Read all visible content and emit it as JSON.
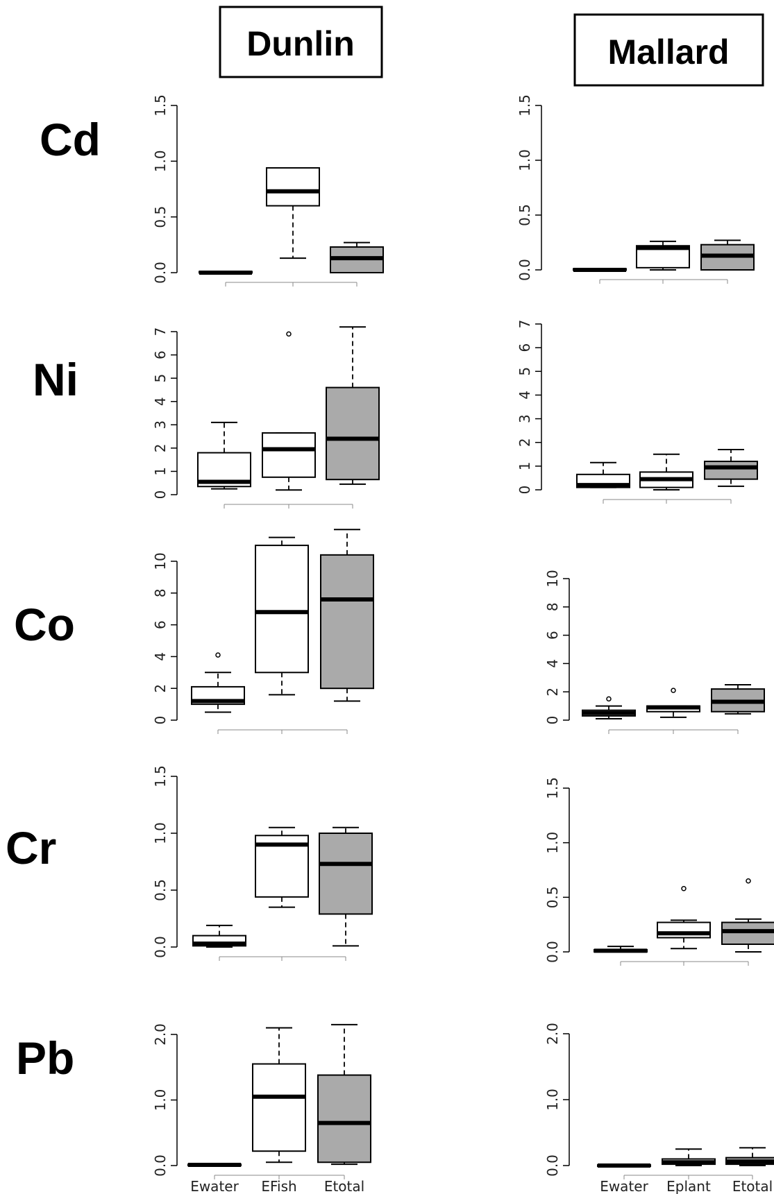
{
  "columns": [
    "Dunlin",
    "Mallard"
  ],
  "rows": [
    "Cd",
    "Ni",
    "Co",
    "Cr",
    "Pb"
  ],
  "colors": {
    "filled": "#aaaaaa",
    "open": "#ffffff",
    "stroke": "#000000"
  },
  "chart_data": [
    {
      "type": "boxplot",
      "species": "Dunlin",
      "metal": "Cd",
      "ylim": [
        0,
        1.5
      ],
      "yticks": [
        0,
        0.5,
        1.0,
        1.5
      ],
      "tick_labels": [
        "0.0",
        "0.5",
        "1.0",
        "1.5"
      ],
      "categories": [
        "Ewater",
        "EFish",
        "Etotal"
      ],
      "show_categories": false,
      "boxes": [
        {
          "min": 0.0,
          "q1": 0.0,
          "median": 0.0,
          "q3": 0.01,
          "max": 0.01,
          "fill": "open"
        },
        {
          "min": 0.13,
          "q1": 0.6,
          "median": 0.73,
          "q3": 0.94,
          "max": 0.94,
          "fill": "open"
        },
        {
          "min": 0.0,
          "q1": 0.0,
          "median": 0.13,
          "q3": 0.23,
          "max": 0.27,
          "fill": "filled"
        }
      ]
    },
    {
      "type": "boxplot",
      "species": "Mallard",
      "metal": "Cd",
      "ylim": [
        0,
        1.5
      ],
      "yticks": [
        0,
        0.5,
        1.0,
        1.5
      ],
      "tick_labels": [
        "0.0",
        "0.5",
        "1.0",
        "1.5"
      ],
      "categories": [
        "Ewater",
        "Eplant",
        "Etotal"
      ],
      "show_categories": false,
      "boxes": [
        {
          "min": 0.0,
          "q1": 0.0,
          "median": 0.0,
          "q3": 0.01,
          "max": 0.01,
          "fill": "open"
        },
        {
          "min": 0.0,
          "q1": 0.02,
          "median": 0.2,
          "q3": 0.22,
          "max": 0.26,
          "fill": "open"
        },
        {
          "min": 0.0,
          "q1": 0.0,
          "median": 0.13,
          "q3": 0.23,
          "max": 0.27,
          "fill": "filled"
        }
      ]
    },
    {
      "type": "boxplot",
      "species": "Dunlin",
      "metal": "Ni",
      "ylim": [
        0,
        7
      ],
      "yticks": [
        0,
        1,
        2,
        3,
        4,
        5,
        6,
        7
      ],
      "tick_labels": [
        "0",
        "1",
        "2",
        "3",
        "4",
        "5",
        "6",
        "7"
      ],
      "categories": [
        "Ewater",
        "EFish",
        "Etotal"
      ],
      "show_categories": false,
      "boxes": [
        {
          "min": 0.25,
          "q1": 0.35,
          "median": 0.55,
          "q3": 1.8,
          "max": 3.1,
          "fill": "open"
        },
        {
          "min": 0.2,
          "q1": 0.75,
          "median": 1.95,
          "q3": 2.65,
          "max": 2.65,
          "outliers": [
            6.9
          ],
          "fill": "open"
        },
        {
          "min": 0.45,
          "q1": 0.65,
          "median": 2.4,
          "q3": 4.6,
          "max": 7.2,
          "fill": "filled"
        }
      ]
    },
    {
      "type": "boxplot",
      "species": "Mallard",
      "metal": "Ni",
      "ylim": [
        0,
        7
      ],
      "yticks": [
        0,
        1,
        2,
        3,
        4,
        5,
        6,
        7
      ],
      "tick_labels": [
        "0",
        "1",
        "2",
        "3",
        "4",
        "5",
        "6",
        "7"
      ],
      "categories": [
        "Ewater",
        "Eplant",
        "Etotal"
      ],
      "show_categories": false,
      "boxes": [
        {
          "min": 0.1,
          "q1": 0.1,
          "median": 0.2,
          "q3": 0.65,
          "max": 1.15,
          "fill": "open"
        },
        {
          "min": 0.0,
          "q1": 0.1,
          "median": 0.45,
          "q3": 0.75,
          "max": 1.5,
          "fill": "open"
        },
        {
          "min": 0.15,
          "q1": 0.45,
          "median": 0.95,
          "q3": 1.2,
          "max": 1.7,
          "fill": "filled"
        }
      ]
    },
    {
      "type": "boxplot",
      "species": "Dunlin",
      "metal": "Co",
      "ylim": [
        0,
        12
      ],
      "yticks": [
        0,
        2,
        4,
        6,
        8,
        10
      ],
      "tick_labels": [
        "0",
        "2",
        "4",
        "6",
        "8",
        "10"
      ],
      "categories": [
        "Ewater",
        "EFish",
        "Etotal"
      ],
      "show_categories": false,
      "boxes": [
        {
          "min": 0.5,
          "q1": 1.0,
          "median": 1.2,
          "q3": 2.1,
          "max": 3.0,
          "outliers": [
            4.1
          ],
          "fill": "open"
        },
        {
          "min": 1.6,
          "q1": 3.0,
          "median": 6.8,
          "q3": 11.0,
          "max": 11.5,
          "fill": "open"
        },
        {
          "min": 1.2,
          "q1": 2.0,
          "median": 7.6,
          "q3": 10.4,
          "max": 12.0,
          "fill": "filled"
        }
      ]
    },
    {
      "type": "boxplot",
      "species": "Mallard",
      "metal": "Co",
      "ylim": [
        0,
        12
      ],
      "yticks": [
        0,
        2,
        4,
        6,
        8,
        10
      ],
      "tick_labels": [
        "0",
        "2",
        "4",
        "6",
        "8",
        "10"
      ],
      "categories": [
        "Ewater",
        "Eplant",
        "Etotal"
      ],
      "show_categories": false,
      "boxes": [
        {
          "min": 0.1,
          "q1": 0.3,
          "median": 0.5,
          "q3": 0.7,
          "max": 1.0,
          "outliers": [
            1.5
          ],
          "fill": "open"
        },
        {
          "min": 0.2,
          "q1": 0.6,
          "median": 0.9,
          "q3": 1.0,
          "max": 1.0,
          "outliers": [
            2.1
          ],
          "fill": "open"
        },
        {
          "min": 0.45,
          "q1": 0.6,
          "median": 1.3,
          "q3": 2.2,
          "max": 2.5,
          "fill": "filled"
        }
      ]
    },
    {
      "type": "boxplot",
      "species": "Dunlin",
      "metal": "Cr",
      "ylim": [
        0,
        1.5
      ],
      "yticks": [
        0,
        0.5,
        1.0,
        1.5
      ],
      "tick_labels": [
        "0.0",
        "0.5",
        "1.0",
        "1.5"
      ],
      "categories": [
        "Ewater",
        "EFish",
        "Etotal"
      ],
      "show_categories": false,
      "boxes": [
        {
          "min": 0.0,
          "q1": 0.01,
          "median": 0.03,
          "q3": 0.1,
          "max": 0.19,
          "fill": "open"
        },
        {
          "min": 0.35,
          "q1": 0.44,
          "median": 0.9,
          "q3": 0.98,
          "max": 1.05,
          "fill": "open"
        },
        {
          "min": 0.01,
          "q1": 0.29,
          "median": 0.73,
          "q3": 1.0,
          "max": 1.05,
          "fill": "filled"
        }
      ]
    },
    {
      "type": "boxplot",
      "species": "Mallard",
      "metal": "Cr",
      "ylim": [
        0,
        1.5
      ],
      "yticks": [
        0,
        0.5,
        1.0,
        1.5
      ],
      "tick_labels": [
        "0.0",
        "0.5",
        "1.0",
        "1.5"
      ],
      "categories": [
        "Ewater",
        "Eplant",
        "Etotal"
      ],
      "show_categories": false,
      "boxes": [
        {
          "min": 0.0,
          "q1": 0.0,
          "median": 0.01,
          "q3": 0.02,
          "max": 0.05,
          "fill": "open"
        },
        {
          "min": 0.03,
          "q1": 0.13,
          "median": 0.17,
          "q3": 0.27,
          "max": 0.29,
          "outliers": [
            0.58
          ],
          "fill": "open"
        },
        {
          "min": 0.0,
          "q1": 0.07,
          "median": 0.19,
          "q3": 0.27,
          "max": 0.3,
          "outliers": [
            0.65
          ],
          "fill": "filled"
        }
      ]
    },
    {
      "type": "boxplot",
      "species": "Dunlin",
      "metal": "Pb",
      "ylim": [
        0,
        2.5
      ],
      "yticks": [
        0,
        1.0,
        2.0
      ],
      "tick_labels": [
        "0.0",
        "1.0",
        "2.0"
      ],
      "categories": [
        "Ewater",
        "EFish",
        "Etotal"
      ],
      "show_categories": true,
      "boxes": [
        {
          "min": 0.0,
          "q1": 0.0,
          "median": 0.01,
          "q3": 0.02,
          "max": 0.02,
          "fill": "open"
        },
        {
          "min": 0.05,
          "q1": 0.22,
          "median": 1.05,
          "q3": 1.55,
          "max": 2.1,
          "fill": "open"
        },
        {
          "min": 0.02,
          "q1": 0.05,
          "median": 0.65,
          "q3": 1.38,
          "max": 2.15,
          "fill": "filled"
        }
      ]
    },
    {
      "type": "boxplot",
      "species": "Mallard",
      "metal": "Pb",
      "ylim": [
        0,
        2.5
      ],
      "yticks": [
        0,
        1.0,
        2.0
      ],
      "tick_labels": [
        "0.0",
        "1.0",
        "2.0"
      ],
      "categories": [
        "Ewater",
        "Eplant",
        "Etotal"
      ],
      "show_categories": true,
      "boxes": [
        {
          "min": 0.0,
          "q1": 0.0,
          "median": 0.0,
          "q3": 0.01,
          "max": 0.01,
          "fill": "open"
        },
        {
          "min": 0.0,
          "q1": 0.02,
          "median": 0.05,
          "q3": 0.1,
          "max": 0.25,
          "fill": "open"
        },
        {
          "min": 0.0,
          "q1": 0.02,
          "median": 0.06,
          "q3": 0.12,
          "max": 0.27,
          "fill": "filled"
        }
      ]
    }
  ]
}
